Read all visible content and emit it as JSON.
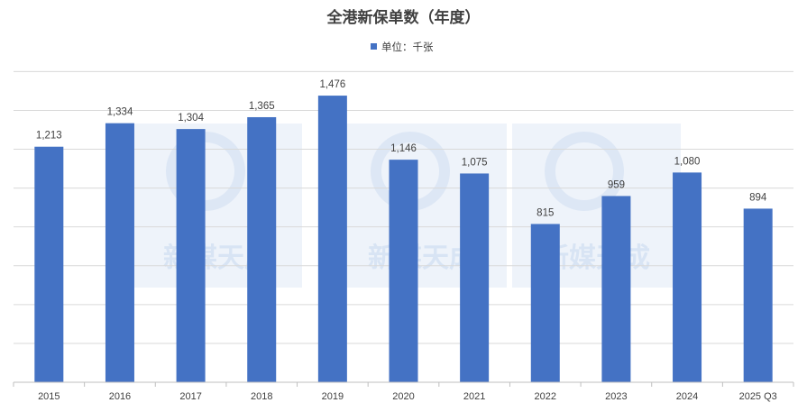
{
  "chart_data": {
    "type": "bar",
    "title": "全港新保单数（年度）",
    "legend": {
      "label": "单位：千张",
      "position": "top"
    },
    "categories": [
      "2015",
      "2016",
      "2017",
      "2018",
      "2019",
      "2020",
      "2021",
      "2022",
      "2023",
      "2024",
      "2025 Q3"
    ],
    "series": [
      {
        "name": "单位：千张",
        "values": [
          1213,
          1334,
          1304,
          1365,
          1476,
          1146,
          1075,
          815,
          959,
          1080,
          894
        ],
        "labels": [
          "1,213",
          "1,334",
          "1,304",
          "1,365",
          "1,476",
          "1,146",
          "1,075",
          "815",
          "959",
          "1,080",
          "894"
        ]
      }
    ],
    "ylim": [
      0,
      1600
    ],
    "grid": true,
    "y_tick_labels_shown": false,
    "color": "#4472c4"
  },
  "watermark": {
    "text": "新媒天成"
  }
}
